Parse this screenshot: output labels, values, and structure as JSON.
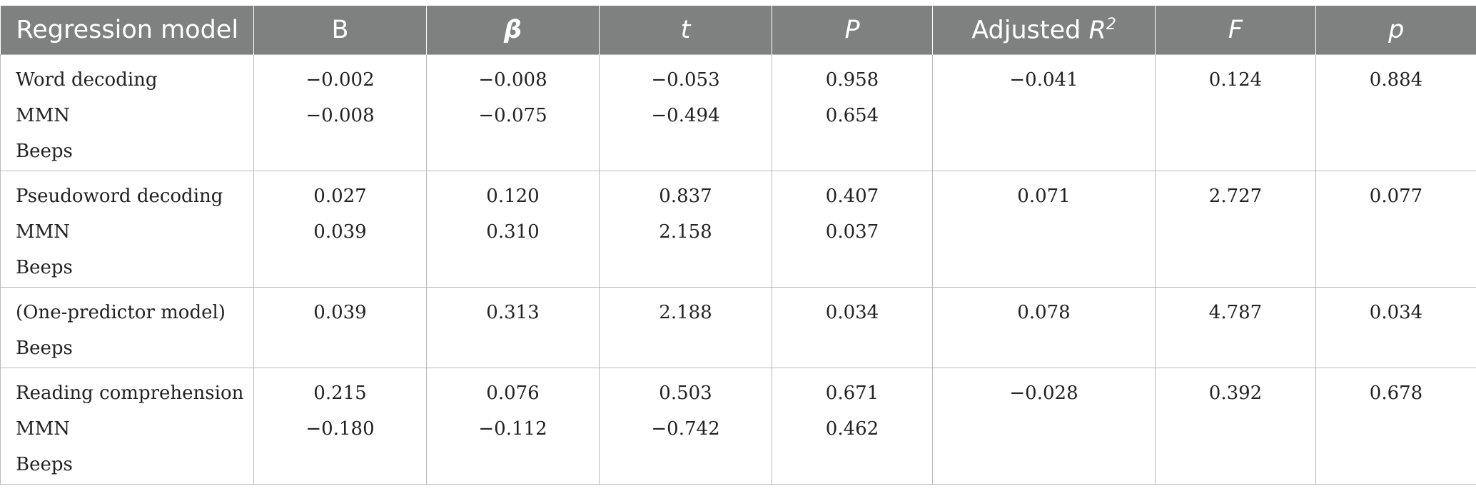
{
  "table": {
    "headers": {
      "model": "Regression model",
      "b": "B",
      "beta": "β",
      "t": "t",
      "p_upper": "P",
      "adj_r2_prefix": "Adjusted ",
      "adj_r2_r": "R",
      "adj_r2_sup": "2",
      "f": "F",
      "p_lower": "p"
    },
    "rows": [
      {
        "labels": [
          "Word decoding",
          "MMN",
          "Beeps"
        ],
        "b": [
          "−0.002",
          "−0.008"
        ],
        "beta": [
          "−0.008",
          "−0.075"
        ],
        "t": [
          "−0.053",
          "−0.494"
        ],
        "P": [
          "0.958",
          "0.654"
        ],
        "adj_r2": "−0.041",
        "F": "0.124",
        "p": "0.884"
      },
      {
        "labels": [
          "Pseudoword decoding",
          "MMN",
          "Beeps"
        ],
        "b": [
          "0.027",
          "0.039"
        ],
        "beta": [
          "0.120",
          "0.310"
        ],
        "t": [
          "0.837",
          "2.158"
        ],
        "P": [
          "0.407",
          "0.037"
        ],
        "adj_r2": "0.071",
        "F": "2.727",
        "p": "0.077"
      },
      {
        "labels": [
          "(One-predictor model)",
          "Beeps"
        ],
        "b": [
          "0.039"
        ],
        "beta": [
          "0.313"
        ],
        "t": [
          "2.188"
        ],
        "P": [
          "0.034"
        ],
        "adj_r2": "0.078",
        "F": "4.787",
        "p": "0.034"
      },
      {
        "labels": [
          "Reading comprehension",
          "MMN",
          "Beeps"
        ],
        "b": [
          "0.215",
          "−0.180"
        ],
        "beta": [
          "0.076",
          "−0.112"
        ],
        "t": [
          "0.503",
          "−0.742"
        ],
        "P": [
          "0.671",
          "0.462"
        ],
        "adj_r2": "−0.028",
        "F": "0.392",
        "p": "0.678"
      }
    ]
  }
}
